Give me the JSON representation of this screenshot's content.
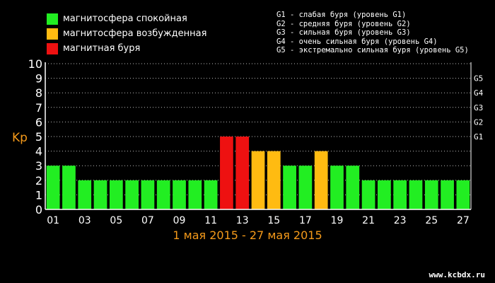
{
  "legend": [
    {
      "label": "магнитосфера спокойная",
      "color": "#22ee22"
    },
    {
      "label": "магнитосфера возбужденная",
      "color": "#ffbb11"
    },
    {
      "label": "магнитная буря",
      "color": "#ee1111"
    }
  ],
  "storm_levels": [
    "G1 - слабая буря (уровень G1)",
    "G2 - средняя буря (уровень G2)",
    "G3 - сильная буря (уровень G3)",
    "G4 - очень сильная буря (уровень G4)",
    "G5 - экстремально сильная буря (уровень G5)"
  ],
  "date_range": "1 мая 2015 - 27 мая 2015",
  "site": "www.kcbdx.ru",
  "chart_data": {
    "type": "bar",
    "ylabel": "Kp",
    "ylim": [
      0,
      10
    ],
    "yticks": [
      "0",
      "1",
      "2",
      "3",
      "4",
      "5",
      "6",
      "7",
      "8",
      "9",
      "10"
    ],
    "right_ticks": [
      {
        "label": "G1",
        "value": 5
      },
      {
        "label": "G2",
        "value": 6
      },
      {
        "label": "G3",
        "value": 7
      },
      {
        "label": "G4",
        "value": 8
      },
      {
        "label": "G5",
        "value": 9
      }
    ],
    "categories": [
      "01",
      "02",
      "03",
      "04",
      "05",
      "06",
      "07",
      "08",
      "09",
      "10",
      "11",
      "12",
      "13",
      "14",
      "15",
      "16",
      "17",
      "18",
      "19",
      "20",
      "21",
      "22",
      "23",
      "24",
      "25",
      "26",
      "27"
    ],
    "xtick_labels": [
      "01",
      "03",
      "05",
      "07",
      "09",
      "11",
      "13",
      "15",
      "17",
      "19",
      "21",
      "23",
      "25",
      "27"
    ],
    "values": [
      3,
      3,
      2,
      2,
      2,
      2,
      2,
      2,
      2,
      2,
      2,
      5,
      5,
      4,
      4,
      3,
      3,
      4,
      3,
      3,
      2,
      2,
      2,
      2,
      2,
      2,
      2
    ],
    "colors": {
      "quiet": "#22ee22",
      "active": "#ffbb11",
      "storm": "#ee1111"
    },
    "grid": true
  }
}
